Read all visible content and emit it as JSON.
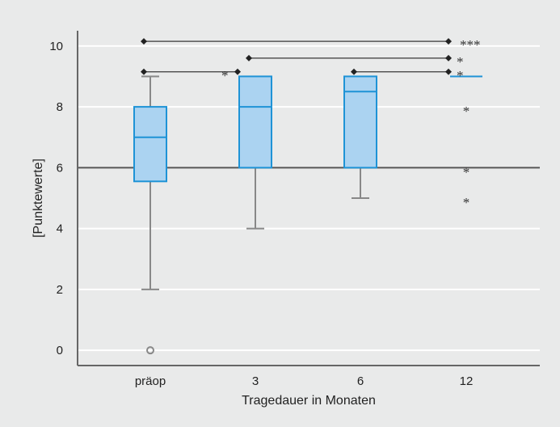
{
  "chart_data": {
    "type": "box",
    "xlabel": "Tragedauer in Monaten",
    "ylabel": "[Punktewerte]",
    "ylim": [
      -0.5,
      10.5
    ],
    "yticks": [
      0,
      2,
      4,
      6,
      8,
      10
    ],
    "grid": true,
    "reference_line": 6,
    "colors": {
      "box_fill": "#abd3f1",
      "box_stroke": "#1e93d6",
      "whisker": "#888888",
      "grid": "#ffffff",
      "reference": "#555555",
      "bracket": "#555555"
    },
    "categories": [
      "präop",
      "3",
      "6",
      "12"
    ],
    "boxes": [
      {
        "category": "präop",
        "whisker_low": 2,
        "q1": 5.55,
        "median": 7,
        "q3": 8,
        "whisker_high": 9,
        "outliers": [
          0
        ],
        "extremes": []
      },
      {
        "category": "3",
        "whisker_low": 4,
        "q1": 6,
        "median": 8,
        "q3": 9,
        "whisker_high": 9,
        "outliers": [],
        "extremes": []
      },
      {
        "category": "6",
        "whisker_low": 5,
        "q1": 6,
        "median": 8.5,
        "q3": 9,
        "whisker_high": 9,
        "outliers": [],
        "extremes": []
      },
      {
        "category": "12",
        "whisker_low": 9,
        "q1": 9,
        "median": 9,
        "q3": 9,
        "whisker_high": 9,
        "outliers": [],
        "extremes": [
          8,
          6,
          5
        ]
      }
    ],
    "significance": [
      {
        "from": "präop",
        "to": "12",
        "y": 10.15,
        "label": "***"
      },
      {
        "from": "3",
        "to": "12",
        "y": 9.6,
        "label": "*"
      },
      {
        "from": "präop",
        "to": "3",
        "y": 9.15,
        "label": "*"
      },
      {
        "from": "6",
        "to": "12",
        "y": 9.15,
        "label": "*"
      }
    ]
  }
}
